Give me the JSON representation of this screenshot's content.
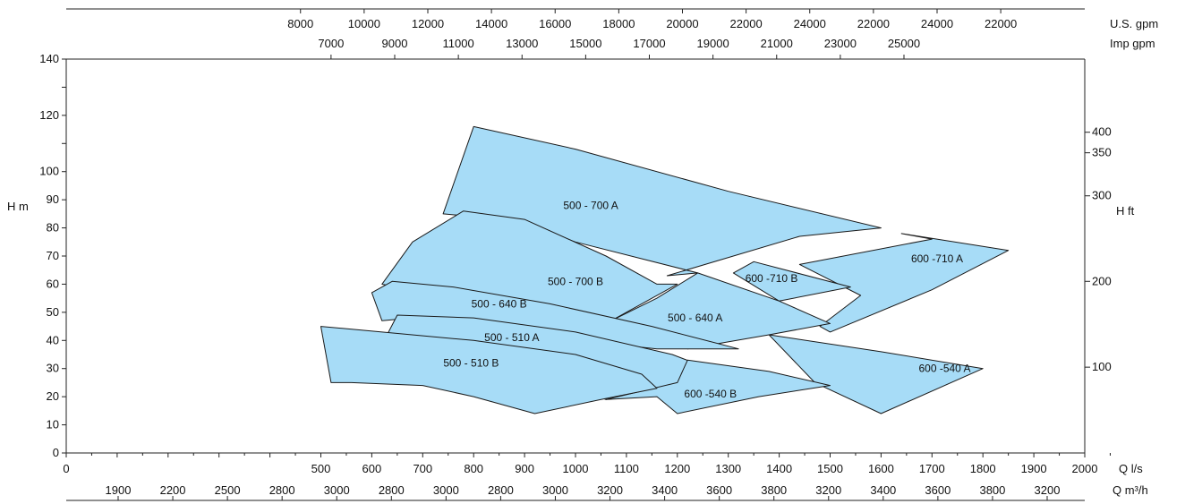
{
  "chart_data": {
    "type": "area",
    "title": "",
    "xlabel": "Q l/s",
    "ylabel": "H m",
    "xlim": [
      0,
      2000
    ],
    "ylim": [
      0,
      140
    ],
    "x_ticks": [
      0,
      100,
      200,
      300,
      400,
      500,
      600,
      700,
      800,
      900,
      1000,
      1100,
      1200,
      1300,
      1400,
      1500,
      1600,
      1700,
      1800,
      1900,
      2000
    ],
    "y_ticks": [
      0,
      10,
      20,
      30,
      40,
      50,
      60,
      70,
      80,
      90,
      100,
      110,
      120,
      130,
      140
    ],
    "x_tick_labels": [
      "0",
      "",
      "",
      "",
      "",
      "500",
      "600",
      "700",
      "800",
      "900",
      "1000",
      "1100",
      "1200",
      "1300",
      "1400",
      "1500",
      "1600",
      "1700",
      "1800",
      "1900",
      "2000"
    ],
    "y_tick_labels": [
      "0",
      "10",
      "20",
      "30",
      "40",
      "50",
      "60",
      "70",
      "80",
      "90",
      "100",
      "",
      "120",
      "",
      "140"
    ],
    "secondary_axes": {
      "top_us_gpm": {
        "label": "U.S.  gpm",
        "ticks": [
          {
            "q": 460,
            "label": "8000"
          },
          {
            "q": 585,
            "label": "10000"
          },
          {
            "q": 710,
            "label": "12000"
          },
          {
            "q": 835,
            "label": "14000"
          },
          {
            "q": 960,
            "label": "16000"
          },
          {
            "q": 1085,
            "label": "18000"
          },
          {
            "q": 1210,
            "label": "20000"
          },
          {
            "q": 1335,
            "label": "22000"
          },
          {
            "q": 1460,
            "label": "24000"
          },
          {
            "q": 1585,
            "label": "22000"
          },
          {
            "q": 1710,
            "label": "24000"
          },
          {
            "q": 1835,
            "label": "22000"
          }
        ]
      },
      "top_imp_gpm": {
        "label": "Imp  gpm",
        "ticks": [
          {
            "q": 520,
            "label": "7000"
          },
          {
            "q": 645,
            "label": "9000"
          },
          {
            "q": 770,
            "label": "11000"
          },
          {
            "q": 895,
            "label": "13000"
          },
          {
            "q": 1020,
            "label": "15000"
          },
          {
            "q": 1145,
            "label": "17000"
          },
          {
            "q": 1270,
            "label": "19000"
          },
          {
            "q": 1395,
            "label": "21000"
          },
          {
            "q": 1520,
            "label": "23000"
          },
          {
            "q": 1645,
            "label": "25000"
          }
        ]
      },
      "right_h_ft": {
        "label": "H  ft",
        "ticks": [
          {
            "h": 30.5,
            "label": "100"
          },
          {
            "h": 61,
            "label": "200"
          },
          {
            "h": 91.4,
            "label": "300"
          },
          {
            "h": 106.7,
            "label": "350"
          },
          {
            "h": 114,
            "label": "400"
          }
        ]
      },
      "bottom_q_m3h": {
        "label": "Q m³/h",
        "ticks": [
          {
            "q": 540,
            "label": "1900"
          },
          {
            "q": 640,
            "label": "2200"
          },
          {
            "q": 740,
            "label": "2500"
          },
          {
            "q": 840,
            "label": "2800"
          },
          {
            "q": 940,
            "label": "3000"
          },
          {
            "q": 1040,
            "label": "2800"
          },
          {
            "q": 1140,
            "label": "3000"
          },
          {
            "q": 1240,
            "label": "2800"
          },
          {
            "q": 1340,
            "label": "3000"
          },
          {
            "q": 1440,
            "label": "3200"
          },
          {
            "q": 1540,
            "label": "3400"
          },
          {
            "q": 1640,
            "label": "3600"
          },
          {
            "q": 1740,
            "label": "3800"
          },
          {
            "q": 1840,
            "label": "3200"
          },
          {
            "q": 1940,
            "label": "3400"
          },
          {
            "q": 2040,
            "label": "3600"
          },
          {
            "q": 2140,
            "label": "3800"
          },
          {
            "q": 2240,
            "label": "3200"
          }
        ]
      }
    },
    "regions": [
      {
        "name": "500 - 700 A",
        "label_at": [
          1030,
          88
        ],
        "points": [
          [
            740,
            85
          ],
          [
            800,
            116
          ],
          [
            1000,
            108
          ],
          [
            1300,
            93
          ],
          [
            1600,
            80
          ],
          [
            1440,
            77
          ],
          [
            1180,
            63
          ],
          [
            1240,
            64
          ],
          [
            1000,
            75
          ],
          [
            870,
            83
          ],
          [
            740,
            85
          ]
        ]
      },
      {
        "name": "600 -710 A",
        "label_at": [
          1710,
          69
        ],
        "points": [
          [
            1440,
            67
          ],
          [
            1700,
            76
          ],
          [
            1640,
            78
          ],
          [
            1850,
            72
          ],
          [
            1700,
            58
          ],
          [
            1500,
            43
          ],
          [
            1480,
            45
          ],
          [
            1560,
            56
          ],
          [
            1440,
            67
          ]
        ]
      },
      {
        "name": "500 - 700 B",
        "label_at": [
          1000,
          61
        ],
        "points": [
          [
            620,
            60
          ],
          [
            680,
            75
          ],
          [
            780,
            86
          ],
          [
            900,
            83
          ],
          [
            1060,
            70
          ],
          [
            1160,
            60
          ],
          [
            1200,
            60
          ],
          [
            1070,
            47
          ],
          [
            950,
            52
          ],
          [
            820,
            55
          ],
          [
            690,
            57
          ],
          [
            620,
            60
          ]
        ]
      },
      {
        "name": "600 -710 B",
        "label_at": [
          1385,
          62
        ],
        "points": [
          [
            1310,
            64
          ],
          [
            1350,
            68
          ],
          [
            1540,
            59
          ],
          [
            1400,
            54
          ],
          [
            1310,
            64
          ]
        ]
      },
      {
        "name": "500 - 640 A",
        "label_at": [
          1235,
          48
        ],
        "points": [
          [
            1070,
            47
          ],
          [
            1160,
            55
          ],
          [
            1240,
            64
          ],
          [
            1400,
            54
          ],
          [
            1500,
            46
          ],
          [
            1380,
            42
          ],
          [
            1220,
            37
          ],
          [
            1070,
            47
          ]
        ]
      },
      {
        "name": "500 - 640 B",
        "label_at": [
          850,
          53
        ],
        "points": [
          [
            600,
            57
          ],
          [
            640,
            61
          ],
          [
            760,
            59
          ],
          [
            950,
            53
          ],
          [
            1150,
            45
          ],
          [
            1320,
            37
          ],
          [
            1160,
            37
          ],
          [
            900,
            42
          ],
          [
            680,
            48
          ],
          [
            620,
            47
          ],
          [
            600,
            57
          ]
        ]
      },
      {
        "name": "600 -540 A",
        "label_at": [
          1725,
          30
        ],
        "points": [
          [
            1380,
            42
          ],
          [
            1600,
            36
          ],
          [
            1800,
            30
          ],
          [
            1600,
            14
          ],
          [
            1470,
            25
          ],
          [
            1380,
            42
          ]
        ]
      },
      {
        "name": "500 - 510 A",
        "label_at": [
          875,
          41
        ],
        "points": [
          [
            630,
            42
          ],
          [
            650,
            49
          ],
          [
            800,
            48
          ],
          [
            1000,
            43
          ],
          [
            1190,
            35
          ],
          [
            1320,
            26
          ],
          [
            1200,
            24
          ],
          [
            1060,
            19
          ],
          [
            950,
            26
          ],
          [
            830,
            34
          ],
          [
            680,
            40
          ],
          [
            630,
            42
          ]
        ]
      },
      {
        "name": "600 -540 B",
        "label_at": [
          1265,
          21
        ],
        "points": [
          [
            1220,
            33
          ],
          [
            1380,
            29
          ],
          [
            1500,
            24
          ],
          [
            1360,
            20
          ],
          [
            1200,
            14
          ],
          [
            1160,
            20
          ],
          [
            1060,
            19
          ],
          [
            1200,
            25
          ],
          [
            1220,
            33
          ]
        ]
      },
      {
        "name": "500 - 510 B",
        "label_at": [
          795,
          32
        ],
        "points": [
          [
            500,
            45
          ],
          [
            620,
            43
          ],
          [
            800,
            40
          ],
          [
            1000,
            35
          ],
          [
            1130,
            28
          ],
          [
            1160,
            23
          ],
          [
            1050,
            19
          ],
          [
            920,
            14
          ],
          [
            800,
            20
          ],
          [
            700,
            24
          ],
          [
            560,
            25
          ],
          [
            520,
            25
          ],
          [
            500,
            45
          ]
        ]
      }
    ]
  }
}
